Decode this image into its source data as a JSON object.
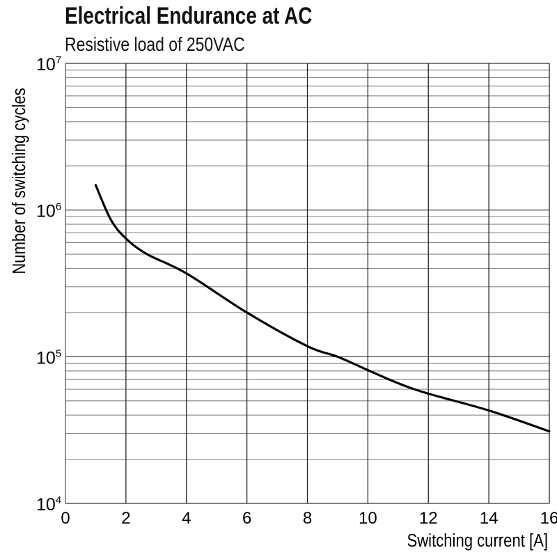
{
  "chart_data": {
    "type": "line",
    "title": "Electrical Endurance at AC",
    "subtitle": "Resistive load of 250VAC",
    "xlabel": "Switching current [A]",
    "ylabel": "Number of switching cycles",
    "xlim": [
      0,
      16
    ],
    "ylim": [
      10000,
      10000000
    ],
    "yscale": "log",
    "grid": true,
    "xticks": [
      "0",
      "2",
      "4",
      "6",
      "8",
      "10",
      "12",
      "14",
      "16"
    ],
    "yticks": [
      {
        "base": "10",
        "exp": "4"
      },
      {
        "base": "10",
        "exp": "5"
      },
      {
        "base": "10",
        "exp": "6"
      },
      {
        "base": "10",
        "exp": "7"
      }
    ],
    "series": [
      {
        "color": "#000000",
        "x": [
          1.0,
          1.5,
          2.0,
          2.7,
          4.0,
          6.0,
          8.0,
          9.0,
          10.0,
          11.0,
          12.0,
          14.0,
          16.0
        ],
        "y": [
          1480000,
          860000,
          640000,
          500000,
          370000,
          200000,
          118000,
          100000,
          81000,
          66000,
          56000,
          43000,
          31000
        ]
      }
    ]
  }
}
